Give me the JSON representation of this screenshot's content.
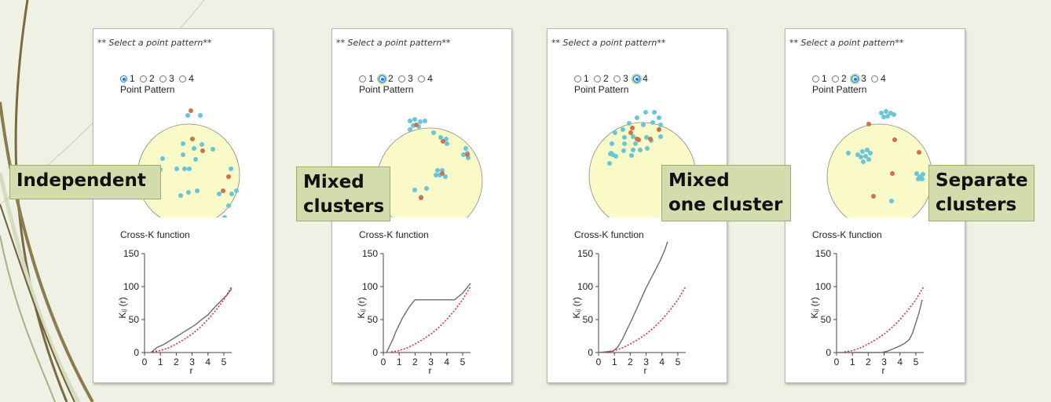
{
  "background": {
    "color": "#eef1e3",
    "line_color": "#7a6a40"
  },
  "colors": {
    "point_a": "#67c6d8",
    "point_b": "#d0704c",
    "circle_fill": "#fafac8",
    "observed": "#6b6b6b",
    "expected": "#e03030"
  },
  "panels": [
    {
      "select_title": "** Select a point pattern**",
      "radio_options": [
        "1",
        "2",
        "3",
        "4"
      ],
      "selected": "1",
      "point_pattern_label": "Point Pattern",
      "cross_k_label": "Cross-K function",
      "tag": "Independent",
      "chart_data": {
        "type": "line",
        "title": "Cross-K function",
        "xlabel": "r",
        "ylabel": "Kᵢⱼ (r)",
        "xlim": [
          0,
          5.5
        ],
        "ylim": [
          0,
          150
        ],
        "x_ticks": [
          "0",
          "1",
          "2",
          "3",
          "4",
          "5"
        ],
        "y_ticks": [
          "0",
          "50",
          "100",
          "150"
        ],
        "series": [
          {
            "x": [
              0.4,
              0.8,
              1.2,
              1.6,
              2.0,
              2.4,
              2.8,
              3.2,
              3.6,
              4.0,
              4.4,
              4.8,
              5.2,
              5.5
            ],
            "y": [
              0,
              8,
              12,
              18,
              24,
              30,
              36,
              42,
              50,
              57,
              68,
              78,
              87,
              97
            ]
          },
          {
            "x": [
              0.5,
              1.0,
              1.5,
              2.0,
              2.5,
              3.0,
              3.5,
              4.0,
              4.5,
              5.0,
              5.5
            ],
            "y": [
              1,
              3,
              7,
              13,
              20,
              28,
              38,
              50,
              64,
              80,
              100
            ]
          }
        ]
      }
    },
    {
      "select_title": "** Select a point pattern**",
      "radio_options": [
        "1",
        "2",
        "3",
        "4"
      ],
      "selected": "2",
      "point_pattern_label": "Point Pattern",
      "cross_k_label": "Cross-K function",
      "tag": "Mixed\nclusters",
      "chart_data": {
        "type": "line",
        "title": "Cross-K function",
        "xlabel": "r",
        "ylabel": "Kᵢⱼ (r)",
        "xlim": [
          0,
          5.5
        ],
        "ylim": [
          0,
          150
        ],
        "x_ticks": [
          "0",
          "1",
          "2",
          "3",
          "4",
          "5"
        ],
        "y_ticks": [
          "0",
          "50",
          "100",
          "150"
        ],
        "series": [
          {
            "x": [
              0.2,
              0.4,
              0.6,
              0.8,
              1.0,
              1.2,
              1.4,
              1.6,
              1.8,
              2.0,
              2.4,
              3.0,
              3.5,
              4.0,
              4.5,
              5.0,
              5.5
            ],
            "y": [
              0,
              10,
              20,
              32,
              42,
              52,
              60,
              68,
              74,
              80,
              80,
              80,
              80,
              80,
              80,
              90,
              105
            ]
          },
          {
            "x": [
              0.5,
              1.0,
              1.5,
              2.0,
              2.5,
              3.0,
              3.5,
              4.0,
              4.5,
              5.0,
              5.5
            ],
            "y": [
              1,
              3,
              7,
              13,
              20,
              28,
              38,
              50,
              64,
              80,
              100
            ]
          }
        ]
      }
    },
    {
      "select_title": "** Select a point pattern**",
      "radio_options": [
        "1",
        "2",
        "3",
        "4"
      ],
      "selected": "4",
      "point_pattern_label": "Point Pattern",
      "cross_k_label": "Cross-K function",
      "tag": "Mixed\none cluster",
      "chart_data": {
        "type": "line",
        "title": "Cross-K function",
        "xlabel": "r",
        "ylabel": "Kᵢⱼ (r)",
        "xlim": [
          0,
          5.5
        ],
        "ylim": [
          0,
          150
        ],
        "x_ticks": [
          "0",
          "1",
          "2",
          "3",
          "4",
          "5"
        ],
        "y_ticks": [
          "0",
          "50",
          "100",
          "150"
        ],
        "series": [
          {
            "x": [
              0,
              0.9,
              1.2,
              1.5,
              1.8,
              2.1,
              2.4,
              2.7,
              3.0,
              3.3,
              3.6,
              3.9,
              4.2,
              4.35
            ],
            "y": [
              0,
              2,
              8,
              20,
              35,
              50,
              66,
              82,
              98,
              112,
              126,
              140,
              157,
              168
            ]
          },
          {
            "x": [
              0.5,
              1.0,
              1.5,
              2.0,
              2.5,
              3.0,
              3.5,
              4.0,
              4.5,
              5.0,
              5.5
            ],
            "y": [
              1,
              3,
              7,
              13,
              20,
              28,
              38,
              50,
              64,
              80,
              100
            ]
          }
        ]
      }
    },
    {
      "select_title": "** Select a point pattern**",
      "radio_options": [
        "1",
        "2",
        "3",
        "4"
      ],
      "selected": "3",
      "point_pattern_label": "Point Pattern",
      "cross_k_label": "Cross-K function",
      "tag": "Separate\nclusters",
      "chart_data": {
        "type": "line",
        "title": "Cross-K function",
        "xlabel": "r",
        "ylabel": "Kᵢⱼ (r)",
        "xlim": [
          0,
          5.5
        ],
        "ylim": [
          0,
          150
        ],
        "x_ticks": [
          "0",
          "1",
          "2",
          "3",
          "4",
          "5"
        ],
        "y_ticks": [
          "0",
          "50",
          "100",
          "150"
        ],
        "series": [
          {
            "x": [
              0,
              2.8,
              3.2,
              3.6,
              4.0,
              4.3,
              4.6,
              4.8,
              5.0,
              5.2,
              5.4
            ],
            "y": [
              0,
              0,
              2,
              6,
              10,
              14,
              20,
              30,
              45,
              60,
              80
            ]
          },
          {
            "x": [
              0.5,
              1.0,
              1.5,
              2.0,
              2.5,
              3.0,
              3.5,
              4.0,
              4.5,
              5.0,
              5.5
            ],
            "y": [
              1,
              3,
              7,
              13,
              20,
              28,
              38,
              50,
              64,
              80,
              100
            ]
          }
        ]
      }
    }
  ]
}
